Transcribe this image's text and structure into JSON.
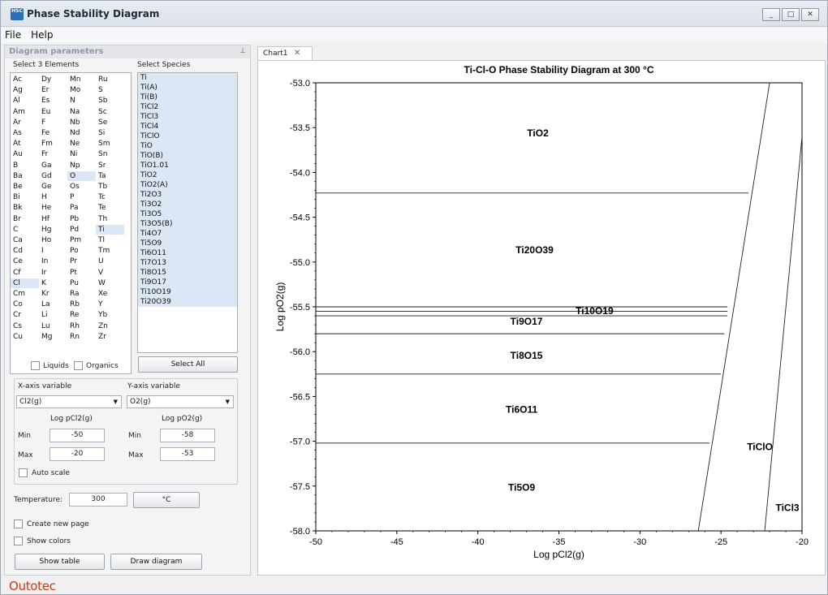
{
  "window": {
    "title": "Phase Stability Diagram",
    "app_icon": "HSC"
  },
  "menu": [
    "File",
    "Help"
  ],
  "panel": {
    "title": "Diagram parameters",
    "select_elements_label": "Select 3 Elements",
    "select_species_label": "Select Species",
    "elements": [
      [
        "Ac",
        "Dy",
        "Mn",
        "Ru"
      ],
      [
        "Ag",
        "Er",
        "Mo",
        "S"
      ],
      [
        "Al",
        "Es",
        "N",
        "Sb"
      ],
      [
        "Am",
        "Eu",
        "Na",
        "Sc"
      ],
      [
        "Ar",
        "F",
        "Nb",
        "Se"
      ],
      [
        "As",
        "Fe",
        "Nd",
        "Si"
      ],
      [
        "At",
        "Fm",
        "Ne",
        "Sm"
      ],
      [
        "Au",
        "Fr",
        "Ni",
        "Sn"
      ],
      [
        "B",
        "Ga",
        "Np",
        "Sr"
      ],
      [
        "Ba",
        "Gd",
        "O",
        "Ta"
      ],
      [
        "Be",
        "Ge",
        "Os",
        "Tb"
      ],
      [
        "Bi",
        "H",
        "P",
        "Tc"
      ],
      [
        "Bk",
        "He",
        "Pa",
        "Te"
      ],
      [
        "Br",
        "Hf",
        "Pb",
        "Th"
      ],
      [
        "C",
        "Hg",
        "Pd",
        "Ti"
      ],
      [
        "Ca",
        "Ho",
        "Pm",
        "Tl"
      ],
      [
        "Cd",
        "I",
        "Po",
        "Tm"
      ],
      [
        "Ce",
        "In",
        "Pr",
        "U"
      ],
      [
        "Cf",
        "Ir",
        "Pt",
        "V"
      ],
      [
        "Cl",
        "K",
        "Pu",
        "W"
      ],
      [
        "Cm",
        "Kr",
        "Ra",
        "Xe"
      ],
      [
        "Co",
        "La",
        "Rb",
        "Y"
      ],
      [
        "Cr",
        "Li",
        "Re",
        "Yb"
      ],
      [
        "Cs",
        "Lu",
        "Rh",
        "Zn"
      ],
      [
        "Cu",
        "Mg",
        "Rn",
        "Zr"
      ]
    ],
    "selected_elements": [
      "O",
      "Ti",
      "Cl"
    ],
    "species": [
      "Ti",
      "Ti(A)",
      "Ti(B)",
      "TiCl2",
      "TiCl3",
      "TiCl4",
      "TiClO",
      "TiO",
      "TiO(B)",
      "TiO1.01",
      "TiO2",
      "TiO2(A)",
      "Ti2O3",
      "Ti3O2",
      "Ti3O5",
      "Ti3O5(B)",
      "Ti4O7",
      "Ti5O9",
      "Ti6O11",
      "Ti7O13",
      "Ti8O15",
      "Ti9O17",
      "Ti10O19",
      "Ti20O39"
    ],
    "liquids_label": "Liquids",
    "organics_label": "Organics",
    "select_all_label": "Select All",
    "x_axis_label": "X-axis variable",
    "y_axis_label": "Y-axis variable",
    "x_axis_value": "Cl2(g)",
    "y_axis_value": "O2(g)",
    "x_log_label": "Log pCl2(g)",
    "y_log_label": "Log pO2(g)",
    "min_label": "Min",
    "max_label": "Max",
    "x_min": "-50",
    "x_max": "-20",
    "y_min": "-58",
    "y_max": "-53",
    "auto_scale_label": "Auto scale",
    "temperature_label": "Temperature:",
    "temperature_value": "300",
    "unit_button": "°C",
    "create_new_page_label": "Create new page",
    "show_colors_label": "Show colors",
    "show_table_label": "Show table",
    "draw_diagram_label": "Draw diagram"
  },
  "brand": "Outotec",
  "tab": {
    "label": "Chart1",
    "close": "✕"
  },
  "chart_data": {
    "type": "line",
    "title": "Ti-Cl-O Phase Stability Diagram at 300 °C",
    "xlabel": "Log pCl2(g)",
    "ylabel": "Log pO2(g)",
    "xlim": [
      -50,
      -20
    ],
    "ylim": [
      -58.0,
      -53.0
    ],
    "x_ticks": [
      "-50",
      "-45",
      "-40",
      "-35",
      "-30",
      "-25",
      "-20"
    ],
    "y_ticks": [
      "-53.0",
      "-53.5",
      "-54.0",
      "-54.5",
      "-55.0",
      "-55.5",
      "-56.0",
      "-56.5",
      "-57.0",
      "-57.5",
      "-58.0"
    ],
    "boundaries": [
      {
        "x": [
          -50,
          -23.3
        ],
        "y": [
          -54.23,
          -54.23
        ]
      },
      {
        "x": [
          -50,
          -24.6
        ],
        "y": [
          -55.5,
          -55.5
        ]
      },
      {
        "x": [
          -50,
          -24.6
        ],
        "y": [
          -55.55,
          -55.55
        ]
      },
      {
        "x": [
          -50,
          -24.6
        ],
        "y": [
          -55.6,
          -55.6
        ]
      },
      {
        "x": [
          -50,
          -24.8
        ],
        "y": [
          -55.8,
          -55.8
        ]
      },
      {
        "x": [
          -50,
          -25.0
        ],
        "y": [
          -56.25,
          -56.25
        ]
      },
      {
        "x": [
          -50,
          -25.7
        ],
        "y": [
          -57.02,
          -57.02
        ]
      },
      {
        "x": [
          -26.4,
          -22.0
        ],
        "y": [
          -58.0,
          -53.0
        ]
      },
      {
        "x": [
          -22.3,
          -20.0
        ],
        "y": [
          -58.0,
          -53.6
        ]
      }
    ],
    "regions": [
      {
        "name": "TiO2",
        "x": -36.3,
        "y": -53.6
      },
      {
        "name": "Ti20O39",
        "x": -36.5,
        "y": -54.9
      },
      {
        "name": "Ti10O19",
        "x": -32.8,
        "y": -55.58
      },
      {
        "name": "Ti9O17",
        "x": -37.0,
        "y": -55.7
      },
      {
        "name": "Ti8O15",
        "x": -37.0,
        "y": -56.08
      },
      {
        "name": "Ti6O11",
        "x": -37.3,
        "y": -56.68
      },
      {
        "name": "TiClO",
        "x": -22.6,
        "y": -57.1
      },
      {
        "name": "Ti5O9",
        "x": -37.3,
        "y": -57.55
      },
      {
        "name": "TiCl3",
        "x": -20.9,
        "y": -57.78
      }
    ]
  }
}
